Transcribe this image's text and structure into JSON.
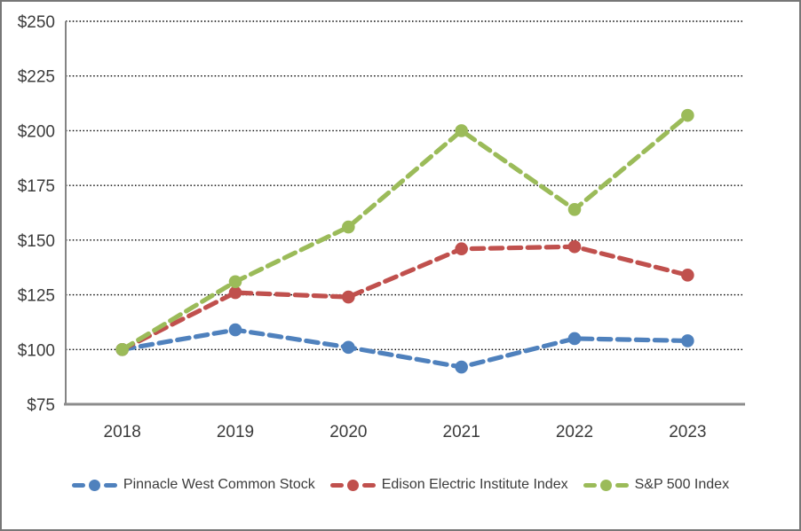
{
  "chart_data": {
    "type": "line",
    "title": "",
    "categories": [
      "2018",
      "2019",
      "2020",
      "2021",
      "2022",
      "2023"
    ],
    "series": [
      {
        "name": "Pinnacle West Common Stock",
        "color": "#4F81BD",
        "values": [
          100,
          109,
          101,
          92,
          105,
          104
        ]
      },
      {
        "name": "Edison Electric Institute Index",
        "color": "#C0504D",
        "values": [
          100,
          126,
          124,
          146,
          147,
          134
        ]
      },
      {
        "name": "S&P 500 Index",
        "color": "#9BBB59",
        "values": [
          100,
          131,
          156,
          200,
          164,
          207
        ]
      }
    ],
    "y_axis": {
      "min": 75,
      "max": 250,
      "tick_step": 25,
      "tick_labels": [
        "$75",
        "$100",
        "$125",
        "$150",
        "$175",
        "$200",
        "$225",
        "$250"
      ]
    },
    "x_axis": {
      "labels": [
        "2018",
        "2019",
        "2020",
        "2021",
        "2022",
        "2023"
      ]
    },
    "grid": "horizontal-dotted-black",
    "legend_position": "bottom",
    "line_style": "dashed",
    "marker": "circle",
    "axis_color": "#8c8c8c",
    "gridline_color": "#000000"
  }
}
